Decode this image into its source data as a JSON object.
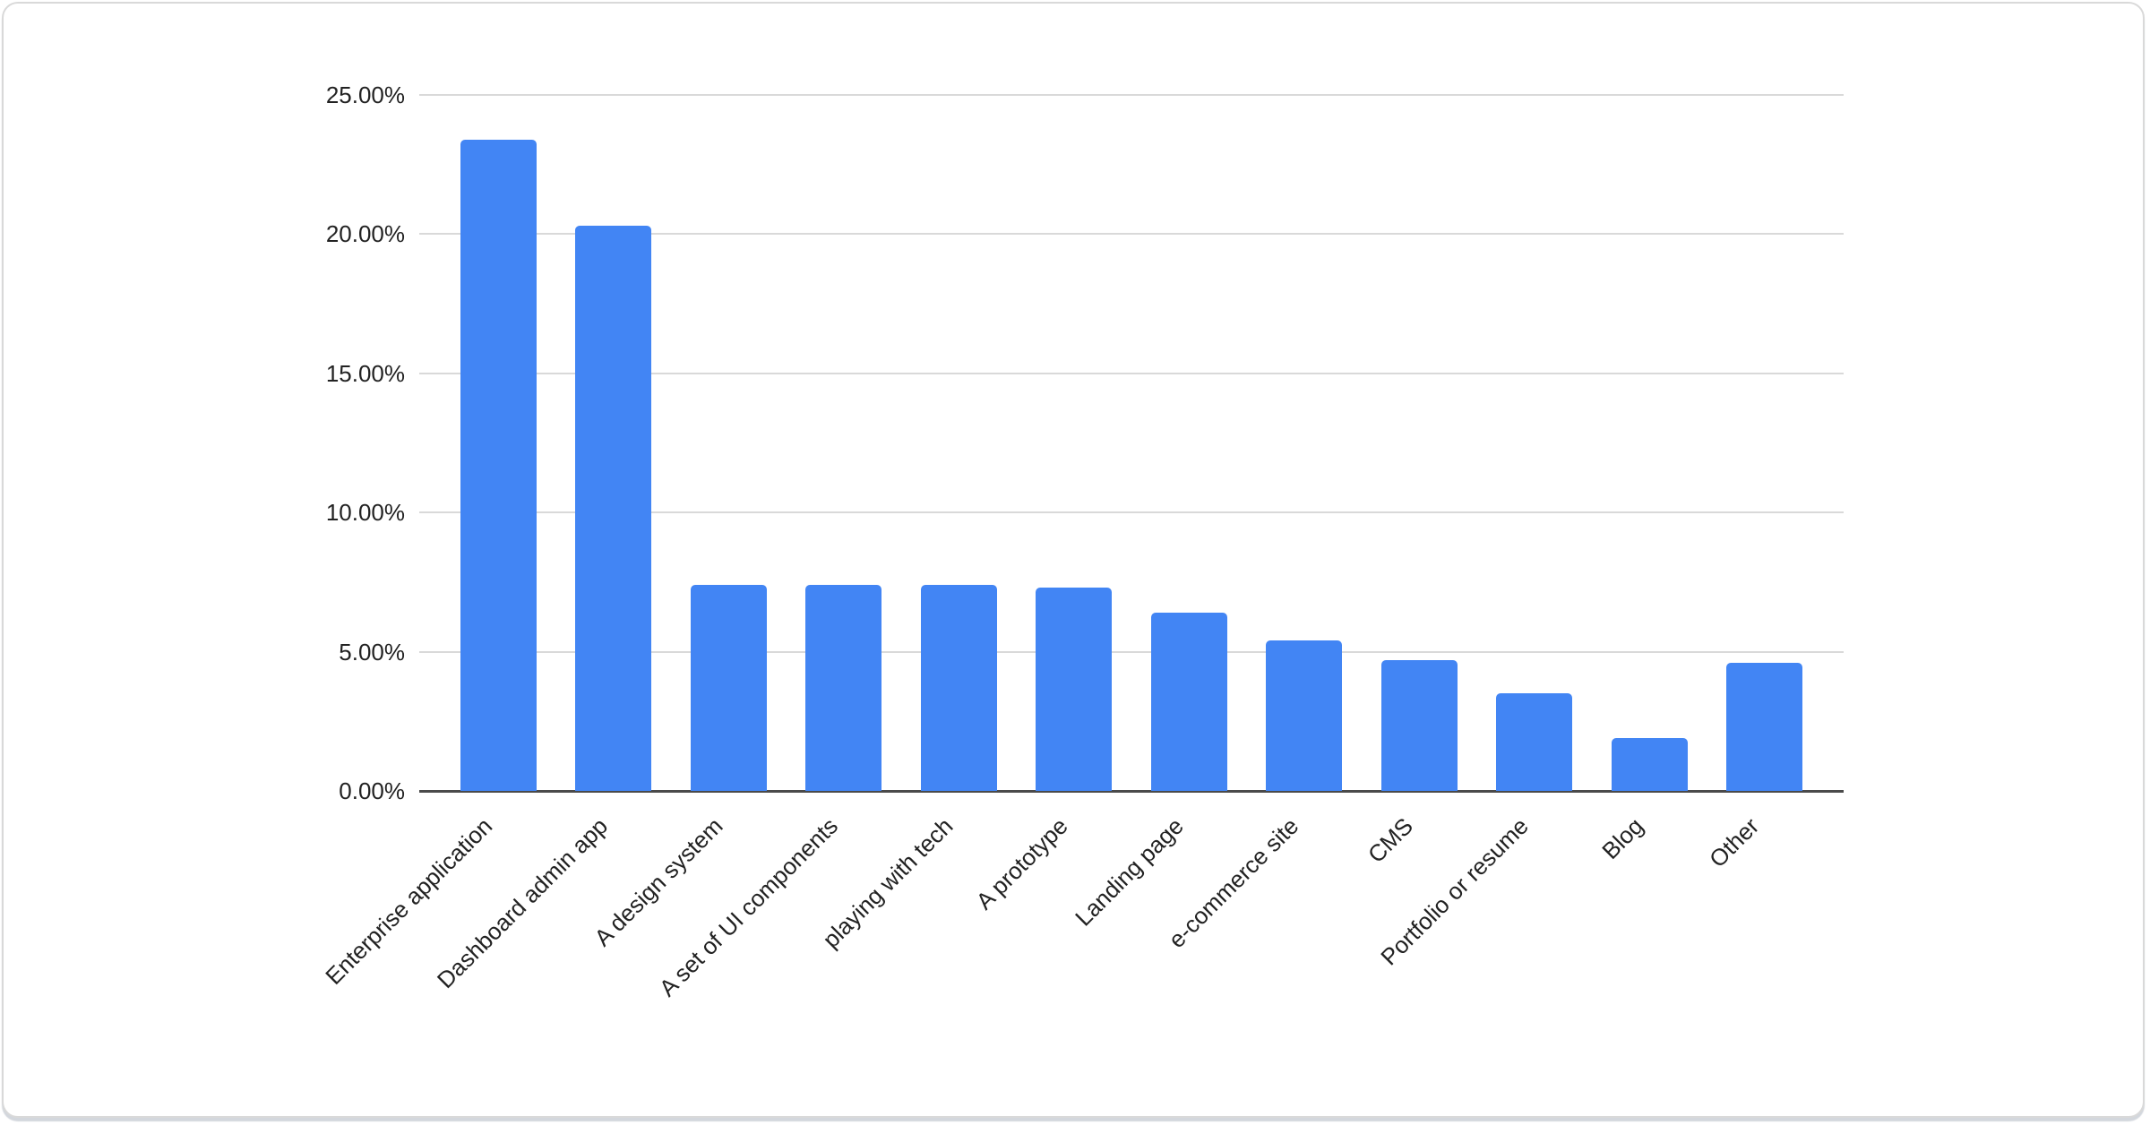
{
  "chart_data": {
    "type": "bar",
    "title": "",
    "xlabel": "",
    "ylabel": "",
    "categories": [
      "Enterprise application",
      "Dashboard admin app",
      "A design system",
      "A set of UI components",
      "playing with tech",
      "A prototype",
      "Landing page",
      "e-commerce site",
      "CMS",
      "Portfolio or resume",
      "Blog",
      "Other"
    ],
    "values": [
      23.4,
      20.3,
      7.4,
      7.4,
      7.4,
      7.3,
      6.4,
      5.4,
      4.7,
      3.5,
      1.9,
      4.6
    ],
    "y_ticks": [
      {
        "label": "25.00%",
        "value": 25
      },
      {
        "label": "20.00%",
        "value": 20
      },
      {
        "label": "15.00%",
        "value": 15
      },
      {
        "label": "10.00%",
        "value": 10
      },
      {
        "label": "5.00%",
        "value": 5
      },
      {
        "label": "0.00%",
        "value": 0
      }
    ],
    "ylim": [
      0,
      25
    ],
    "grid": true,
    "legend": "none",
    "x_label_rotation_deg": 45,
    "bar_color": "#4285f4",
    "gridline_color": "#d9d9d9",
    "axis_line_color": "#4a4a4a",
    "label_color": "#222222"
  }
}
